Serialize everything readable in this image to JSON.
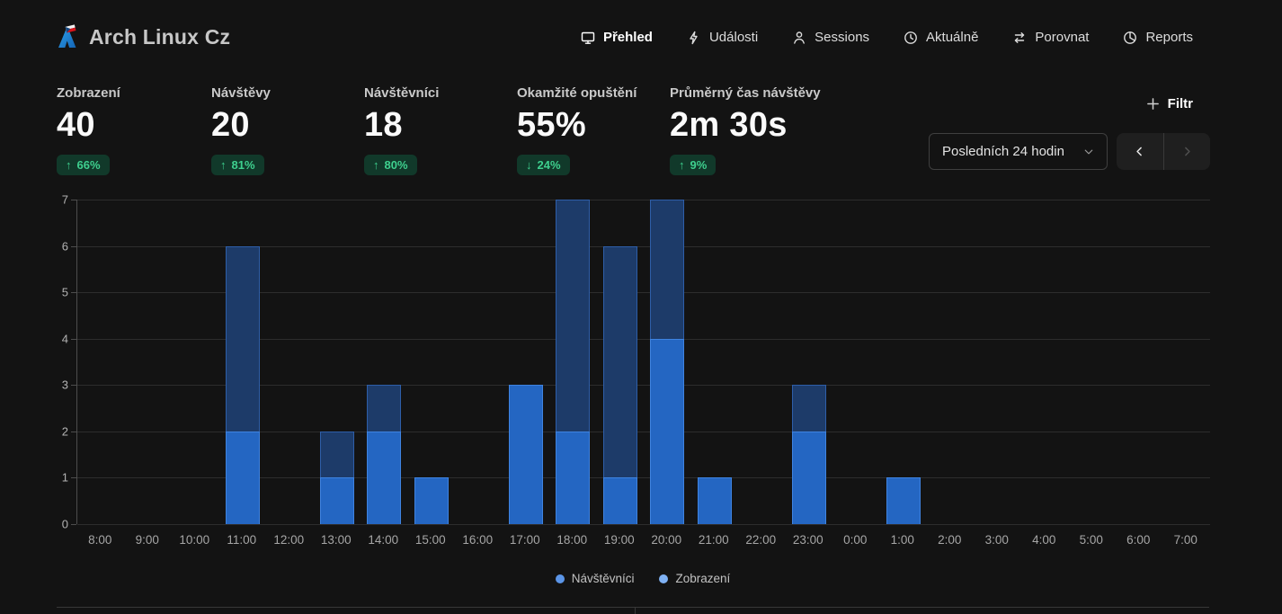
{
  "app": {
    "title": "Arch Linux Cz"
  },
  "nav": {
    "items": [
      {
        "id": "prehled",
        "label": "Přehled",
        "icon": "monitor-icon",
        "active": true
      },
      {
        "id": "udalosti",
        "label": "Události",
        "icon": "lightning-icon",
        "active": false
      },
      {
        "id": "sessions",
        "label": "Sessions",
        "icon": "person-icon",
        "active": false
      },
      {
        "id": "aktualne",
        "label": "Aktuálně",
        "icon": "clock-icon",
        "active": false
      },
      {
        "id": "porovnat",
        "label": "Porovnat",
        "icon": "compare-arrows-icon",
        "active": false
      },
      {
        "id": "reports",
        "label": "Reports",
        "icon": "pie-chart-icon",
        "active": false
      }
    ]
  },
  "stats": {
    "cards": [
      {
        "id": "zobrazeni",
        "label": "Zobrazení",
        "value": "40",
        "change": "66%",
        "direction": "up"
      },
      {
        "id": "navstevy",
        "label": "Návštěvy",
        "value": "20",
        "change": "81%",
        "direction": "up"
      },
      {
        "id": "navstevnici",
        "label": "Návštěvníci",
        "value": "18",
        "change": "80%",
        "direction": "up"
      },
      {
        "id": "opusteni",
        "label": "Okamžité opuštění",
        "value": "55%",
        "change": "24%",
        "direction": "down"
      },
      {
        "id": "cas",
        "label": "Průměrný čas návštěvy",
        "value": "2m 30s",
        "change": "9%",
        "direction": "up"
      }
    ],
    "badge_bg": "#11392a",
    "badge_fg": "#3ecf8e"
  },
  "controls": {
    "filter_label": "Filtr",
    "date_range": "Posledních 24 hodin"
  },
  "chart_data": {
    "type": "bar",
    "title": "",
    "xlabel": "",
    "ylabel": "",
    "categories": [
      "8:00",
      "9:00",
      "10:00",
      "11:00",
      "12:00",
      "13:00",
      "14:00",
      "15:00",
      "16:00",
      "17:00",
      "18:00",
      "19:00",
      "20:00",
      "21:00",
      "22:00",
      "23:00",
      "0:00",
      "1:00",
      "2:00",
      "3:00",
      "4:00",
      "5:00",
      "6:00",
      "7:00"
    ],
    "series": [
      {
        "name": "Zobrazení",
        "values": [
          0,
          0,
          0,
          6,
          0,
          2,
          3,
          1,
          0,
          3,
          7,
          6,
          7,
          1,
          0,
          3,
          0,
          1,
          0,
          0,
          0,
          0,
          0,
          0
        ],
        "fill": "#1d3b69",
        "border": "#2e5ea8"
      },
      {
        "name": "Návštěvníci",
        "values": [
          0,
          0,
          0,
          2,
          0,
          1,
          2,
          1,
          0,
          3,
          2,
          1,
          4,
          1,
          0,
          2,
          0,
          1,
          0,
          0,
          0,
          0,
          0,
          0
        ],
        "fill": "#2466c2",
        "border": "#3f83e0"
      }
    ],
    "ylim": [
      0,
      7
    ],
    "yticks": [
      0,
      1,
      2,
      3,
      4,
      5,
      6,
      7
    ],
    "grid": "horizontal",
    "legend_position": "bottom"
  },
  "legend": [
    {
      "label": "Návštěvníci",
      "color": "#5b95e8"
    },
    {
      "label": "Zobrazení",
      "color": "#7fb1f3"
    }
  ]
}
